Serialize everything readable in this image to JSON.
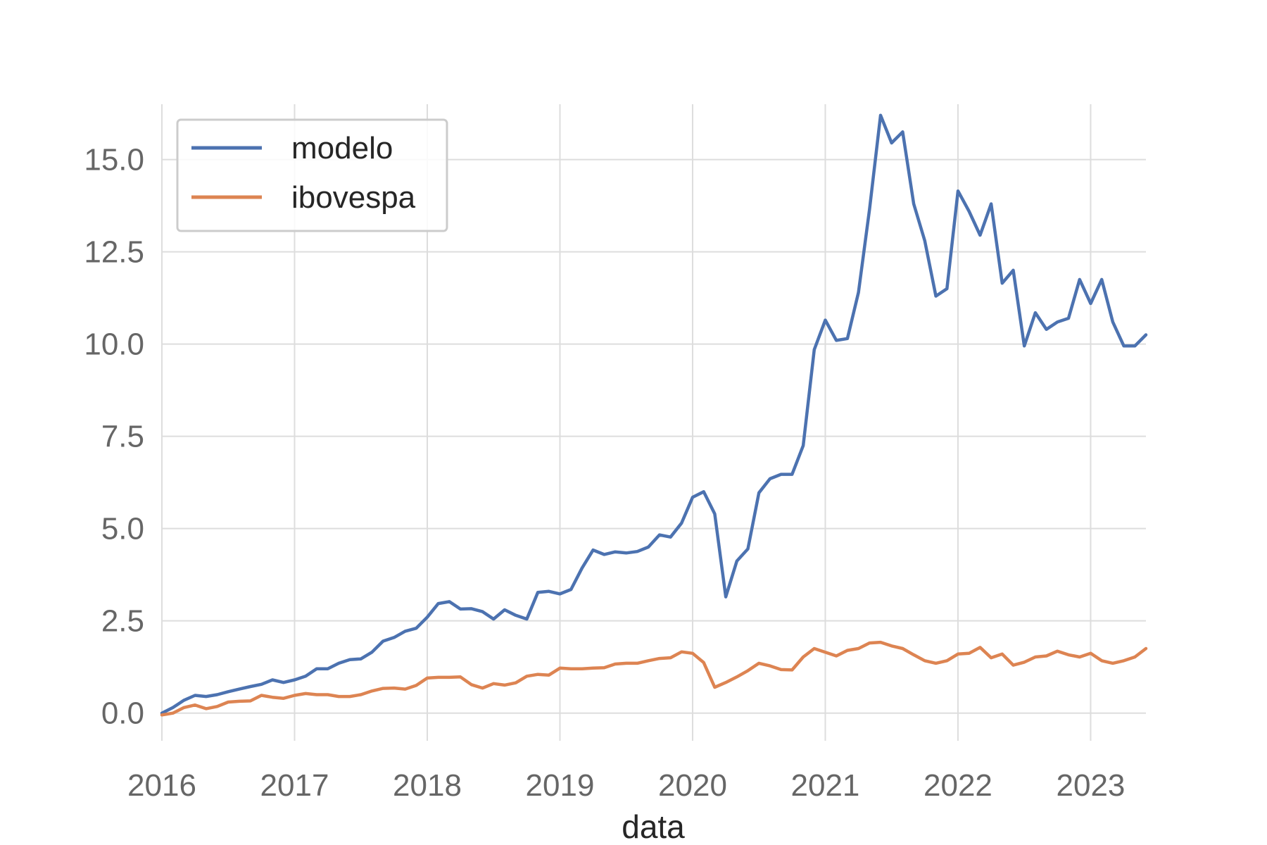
{
  "chart_data": {
    "type": "line",
    "title": "",
    "xlabel": "data",
    "ylabel": "",
    "xlim": [
      "2016-01",
      "2023-06"
    ],
    "ylim": [
      -0.75,
      16.5
    ],
    "grid": true,
    "legend_position": "top-left",
    "x_ticks": [
      "2016",
      "2017",
      "2018",
      "2019",
      "2020",
      "2021",
      "2022",
      "2023"
    ],
    "y_ticks": [
      "0.0",
      "2.5",
      "5.0",
      "7.5",
      "10.0",
      "12.5",
      "15.0"
    ],
    "x": [
      "2016-01",
      "2016-02",
      "2016-03",
      "2016-04",
      "2016-05",
      "2016-06",
      "2016-07",
      "2016-08",
      "2016-09",
      "2016-10",
      "2016-11",
      "2016-12",
      "2017-01",
      "2017-02",
      "2017-03",
      "2017-04",
      "2017-05",
      "2017-06",
      "2017-07",
      "2017-08",
      "2017-09",
      "2017-10",
      "2017-11",
      "2017-12",
      "2018-01",
      "2018-02",
      "2018-03",
      "2018-04",
      "2018-05",
      "2018-06",
      "2018-07",
      "2018-08",
      "2018-09",
      "2018-10",
      "2018-11",
      "2018-12",
      "2019-01",
      "2019-02",
      "2019-03",
      "2019-04",
      "2019-05",
      "2019-06",
      "2019-07",
      "2019-08",
      "2019-09",
      "2019-10",
      "2019-11",
      "2019-12",
      "2020-01",
      "2020-02",
      "2020-03",
      "2020-04",
      "2020-05",
      "2020-06",
      "2020-07",
      "2020-08",
      "2020-09",
      "2020-10",
      "2020-11",
      "2020-12",
      "2021-01",
      "2021-02",
      "2021-03",
      "2021-04",
      "2021-05",
      "2021-06",
      "2021-07",
      "2021-08",
      "2021-09",
      "2021-10",
      "2021-11",
      "2021-12",
      "2022-01",
      "2022-02",
      "2022-03",
      "2022-04",
      "2022-05",
      "2022-06",
      "2022-07",
      "2022-08",
      "2022-09",
      "2022-10",
      "2022-11",
      "2022-12",
      "2023-01",
      "2023-02",
      "2023-03",
      "2023-04",
      "2023-05",
      "2023-06"
    ],
    "series": [
      {
        "name": "modelo",
        "color": "#4c72b0",
        "values": [
          0.0,
          0.15,
          0.35,
          0.48,
          0.45,
          0.5,
          0.58,
          0.65,
          0.72,
          0.78,
          0.9,
          0.83,
          0.9,
          1.0,
          1.2,
          1.2,
          1.35,
          1.45,
          1.47,
          1.65,
          1.95,
          2.05,
          2.22,
          2.3,
          2.6,
          2.97,
          3.02,
          2.82,
          2.83,
          2.75,
          2.55,
          2.8,
          2.65,
          2.55,
          3.27,
          3.3,
          3.23,
          3.35,
          3.93,
          4.42,
          4.3,
          4.37,
          4.34,
          4.38,
          4.5,
          4.83,
          4.77,
          5.15,
          5.85,
          6.0,
          5.4,
          3.15,
          4.12,
          4.45,
          5.97,
          6.35,
          6.47,
          6.47,
          7.25,
          9.85,
          10.65,
          10.1,
          10.15,
          11.4,
          13.65,
          16.2,
          15.45,
          15.75,
          13.8,
          12.8,
          11.3,
          11.5,
          14.15,
          13.6,
          12.95,
          13.8,
          11.65,
          12.0,
          9.95,
          10.85,
          10.4,
          10.6,
          10.7,
          11.75,
          11.1,
          11.75,
          10.6,
          9.95,
          9.95,
          10.25
        ]
      },
      {
        "name": "ibovespa",
        "color": "#dd8452",
        "values": [
          -0.05,
          0.0,
          0.15,
          0.22,
          0.12,
          0.18,
          0.3,
          0.32,
          0.33,
          0.48,
          0.43,
          0.4,
          0.48,
          0.53,
          0.5,
          0.5,
          0.45,
          0.45,
          0.5,
          0.6,
          0.67,
          0.68,
          0.65,
          0.75,
          0.95,
          0.97,
          0.97,
          0.98,
          0.77,
          0.68,
          0.8,
          0.76,
          0.82,
          1.0,
          1.05,
          1.03,
          1.22,
          1.2,
          1.2,
          1.22,
          1.23,
          1.33,
          1.35,
          1.35,
          1.42,
          1.48,
          1.5,
          1.66,
          1.62,
          1.37,
          0.7,
          0.83,
          0.98,
          1.15,
          1.35,
          1.28,
          1.18,
          1.17,
          1.52,
          1.75,
          1.65,
          1.55,
          1.7,
          1.75,
          1.9,
          1.92,
          1.82,
          1.75,
          1.58,
          1.42,
          1.35,
          1.42,
          1.6,
          1.62,
          1.78,
          1.5,
          1.6,
          1.3,
          1.38,
          1.52,
          1.55,
          1.68,
          1.58,
          1.52,
          1.62,
          1.42,
          1.35,
          1.42,
          1.52,
          1.75
        ]
      }
    ]
  }
}
